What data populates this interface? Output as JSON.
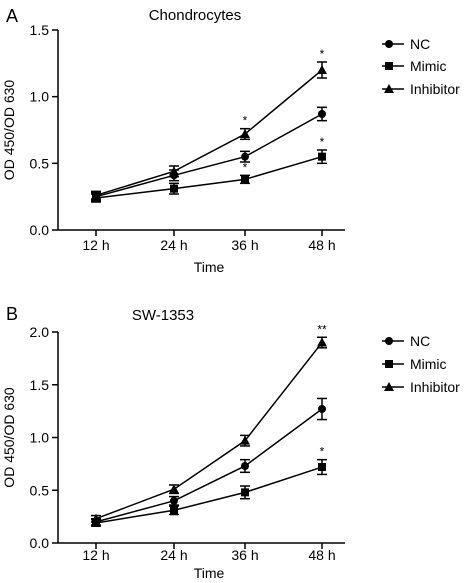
{
  "chart_data": [
    {
      "panel": "A",
      "type": "line",
      "title": "Chondrocytes",
      "xlabel": "Time",
      "ylabel": "OD 450/OD 630",
      "categories": [
        "12 h",
        "24 h",
        "36 h",
        "48 h"
      ],
      "ylim": [
        0,
        1.5
      ],
      "yticks": [
        "0.0",
        "0.5",
        "1.0",
        "1.5"
      ],
      "legend_position": "right",
      "series": [
        {
          "name": "NC",
          "marker": "circle",
          "values": [
            0.25,
            0.41,
            0.55,
            0.87
          ],
          "errors": [
            0.03,
            0.04,
            0.04,
            0.05
          ],
          "sig": [
            "",
            "",
            "",
            ""
          ]
        },
        {
          "name": "Mimic",
          "marker": "square",
          "values": [
            0.24,
            0.31,
            0.38,
            0.55
          ],
          "errors": [
            0.03,
            0.04,
            0.03,
            0.05
          ],
          "sig": [
            "",
            "",
            "*",
            "*"
          ]
        },
        {
          "name": "Inhibitor",
          "marker": "triangle",
          "values": [
            0.26,
            0.44,
            0.72,
            1.2
          ],
          "errors": [
            0.03,
            0.04,
            0.04,
            0.06
          ],
          "sig": [
            "",
            "",
            "*",
            "*"
          ]
        }
      ]
    },
    {
      "panel": "B",
      "type": "line",
      "title": "SW-1353",
      "xlabel": "Time",
      "ylabel": "OD 450/OD 630",
      "categories": [
        "12 h",
        "24 h",
        "36 h",
        "48 h"
      ],
      "ylim": [
        0,
        2.0
      ],
      "yticks": [
        "0.0",
        "0.5",
        "1.0",
        "1.5",
        "2.0"
      ],
      "legend_position": "right",
      "series": [
        {
          "name": "NC",
          "marker": "circle",
          "values": [
            0.2,
            0.4,
            0.73,
            1.27
          ],
          "errors": [
            0.03,
            0.04,
            0.06,
            0.1
          ],
          "sig": [
            "",
            "",
            "",
            ""
          ]
        },
        {
          "name": "Mimic",
          "marker": "square",
          "values": [
            0.19,
            0.31,
            0.48,
            0.72
          ],
          "errors": [
            0.03,
            0.04,
            0.06,
            0.07
          ],
          "sig": [
            "",
            "",
            "",
            "*"
          ]
        },
        {
          "name": "Inhibitor",
          "marker": "triangle",
          "values": [
            0.23,
            0.51,
            0.97,
            1.9
          ],
          "errors": [
            0.03,
            0.04,
            0.05,
            0.05
          ],
          "sig": [
            "",
            "",
            "",
            "**"
          ]
        }
      ]
    }
  ]
}
